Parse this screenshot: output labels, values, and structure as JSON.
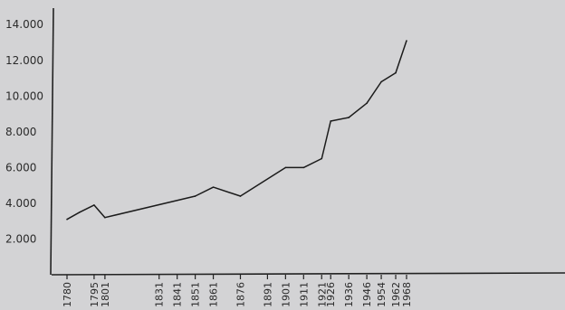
{
  "chart_data": {
    "type": "line",
    "title": "",
    "xlabel": "",
    "ylabel": "",
    "x_ticks": [
      "1780",
      "1795",
      "1801",
      "1831",
      "1841",
      "1851",
      "1861",
      "1876",
      "1891",
      "1901",
      "1911",
      "1921",
      "1926",
      "1936",
      "1946",
      "1954",
      "1962",
      "1968"
    ],
    "y_ticks": [
      "2.000",
      "4.000",
      "6.000",
      "8.000",
      "10.000",
      "12.000",
      "14.000"
    ],
    "y_tick_values": [
      2000,
      4000,
      6000,
      8000,
      10000,
      12000,
      14000
    ],
    "ylim": [
      0,
      15000
    ],
    "xlim": [
      1770,
      2060
    ],
    "grid": false,
    "legend": "none",
    "series": [
      {
        "x": [
          1780,
          1787,
          1795,
          1801,
          1851,
          1861,
          1876,
          1901,
          1911,
          1921,
          1926,
          1936,
          1946,
          1954,
          1962,
          1968
        ],
        "values": [
          3100,
          3500,
          3900,
          3200,
          4400,
          4900,
          4400,
          6000,
          6000,
          6500,
          8600,
          8800,
          9600,
          10800,
          11300,
          13100
        ]
      }
    ],
    "colors": {
      "line": "#1b1b1b",
      "background": "#d3d3d5"
    }
  }
}
